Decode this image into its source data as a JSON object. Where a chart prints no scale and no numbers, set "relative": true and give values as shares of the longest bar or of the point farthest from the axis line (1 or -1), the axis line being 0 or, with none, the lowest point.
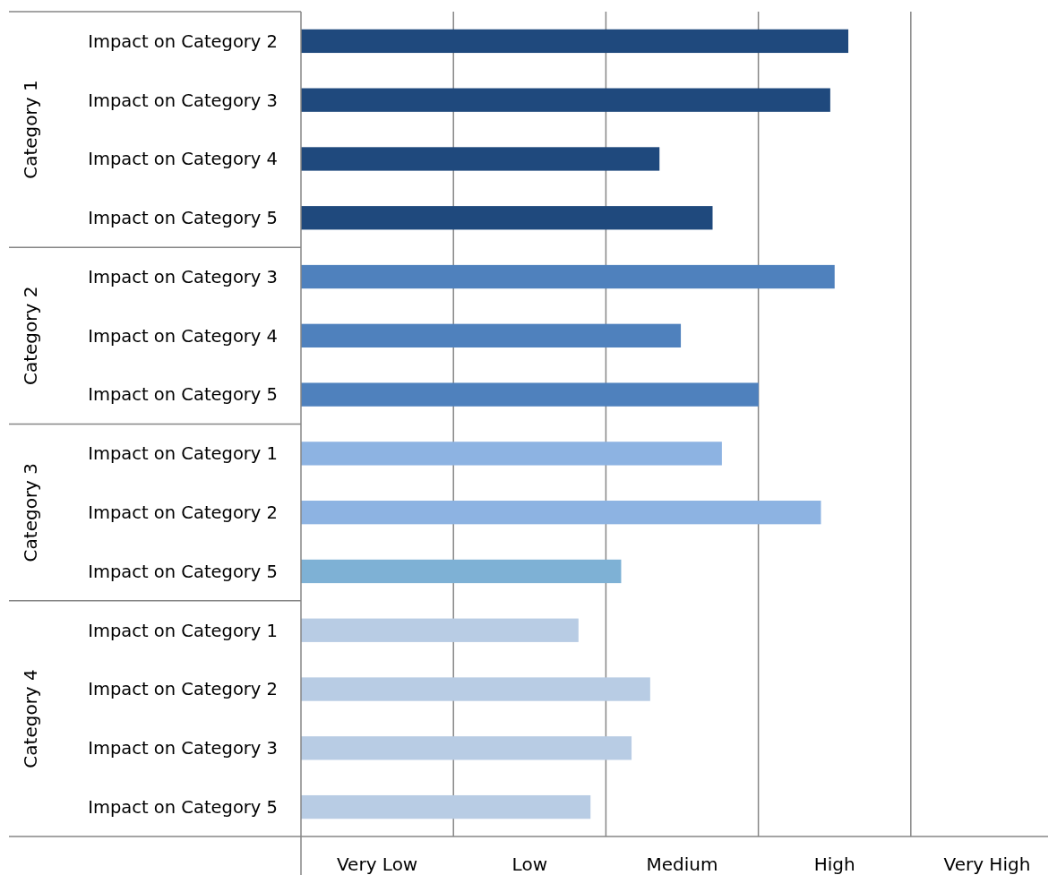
{
  "chart_data": {
    "type": "bar",
    "orientation": "horizontal",
    "relative": true,
    "grid": "x",
    "categories": [
      "Impact on Category 2",
      "Impact on Category 3",
      "Impact on Category 4",
      "Impact on Category 5",
      "Impact on Category 3",
      "Impact on Category 4",
      "Impact on Category 5",
      "Impact on Category 1",
      "Impact on Category 2",
      "Impact on Category 5",
      "Impact on Category 1",
      "Impact on Category 2",
      "Impact on Category 3",
      "Impact on Category 5"
    ],
    "series": [
      {
        "color": "#1f497d",
        "values": [
          1,
          0.967,
          0.655,
          0.752,
          null,
          null,
          null,
          null,
          null,
          null,
          null,
          null,
          null,
          null
        ]
      },
      {
        "color": "#4f81bd",
        "values": [
          null,
          null,
          null,
          null,
          0.975,
          0.694,
          0.836,
          null,
          null,
          null,
          null,
          null,
          null,
          null
        ]
      },
      {
        "color": "#8db3e2",
        "colors": [
          null,
          null,
          null,
          null,
          null,
          null,
          null,
          null,
          null,
          "#7eb1d5",
          null,
          null,
          null,
          null
        ],
        "values": [
          null,
          null,
          null,
          null,
          null,
          null,
          null,
          0.769,
          0.95,
          0.585,
          null,
          null,
          null,
          null
        ]
      },
      {
        "color": "#b8cce4",
        "values": [
          null,
          null,
          null,
          null,
          null,
          null,
          null,
          null,
          null,
          null,
          0.507,
          0.638,
          0.604,
          0.529
        ]
      }
    ],
    "annotations": [
      "Very Low",
      "Low",
      "Medium",
      "High",
      "Very High",
      "Category 1",
      "Category 2",
      "Category 3",
      "Category 4"
    ]
  }
}
